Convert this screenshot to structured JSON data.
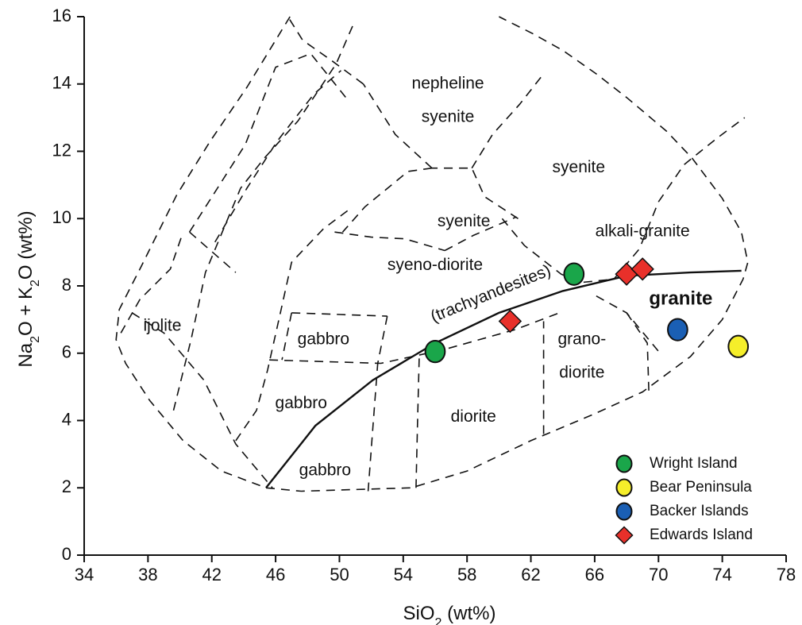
{
  "chart_data": {
    "type": "scatter",
    "title": "",
    "xlabel": {
      "main": "SiO",
      "sub": "2",
      "rest": " (wt%)"
    },
    "ylabel": {
      "p1": "Na",
      "s1": "2",
      "p2": "O + K",
      "s2": "2",
      "p3": "O (wt%)"
    },
    "xlim": [
      34,
      78
    ],
    "ylim": [
      0,
      16
    ],
    "xticks": [
      34,
      38,
      42,
      46,
      50,
      54,
      58,
      62,
      66,
      70,
      74,
      78
    ],
    "yticks": [
      0,
      2,
      4,
      6,
      8,
      10,
      12,
      14,
      16
    ],
    "grid": false,
    "legend_position": "bottom-right",
    "series": [
      {
        "name": "Wright Island",
        "marker": "circle",
        "color": "#1aa64a",
        "points": [
          {
            "x": 56.0,
            "y": 6.05
          },
          {
            "x": 64.7,
            "y": 8.35
          }
        ]
      },
      {
        "name": "Bear Peninsula",
        "marker": "circle",
        "color": "#f5ee2a",
        "points": [
          {
            "x": 75.0,
            "y": 6.2
          }
        ]
      },
      {
        "name": "Backer Islands",
        "marker": "circle",
        "color": "#1a5fb4",
        "points": [
          {
            "x": 71.2,
            "y": 6.7
          }
        ]
      },
      {
        "name": "Edwards Island",
        "marker": "diamond",
        "color": "#e8302a",
        "points": [
          {
            "x": 60.7,
            "y": 6.95
          },
          {
            "x": 68.0,
            "y": 8.35
          },
          {
            "x": 69.0,
            "y": 8.5
          }
        ]
      }
    ],
    "alkaline_subalkaline_boundary": [
      [
        45.4,
        2.0
      ],
      [
        48.5,
        3.85
      ],
      [
        52.1,
        5.2
      ],
      [
        56.0,
        6.3
      ],
      [
        60.0,
        7.2
      ],
      [
        64.0,
        7.85
      ],
      [
        68.0,
        8.3
      ],
      [
        72.0,
        8.4
      ],
      [
        75.2,
        8.45
      ]
    ],
    "field_boundaries": [
      [
        [
          51.8,
          1.9
        ],
        [
          52.1,
          3.8
        ],
        [
          52.4,
          5.7
        ]
      ],
      [
        [
          54.8,
          2.0
        ],
        [
          54.9,
          4.0
        ],
        [
          55.0,
          5.85
        ]
      ],
      [
        [
          62.8,
          3.6
        ],
        [
          62.8,
          5.0
        ],
        [
          62.8,
          6.95
        ]
      ],
      [
        [
          45.6,
          5.8
        ],
        [
          49.0,
          5.75
        ],
        [
          52.6,
          5.7
        ],
        [
          56.5,
          6.1
        ],
        [
          61.0,
          6.7
        ],
        [
          63.8,
          7.2
        ]
      ],
      [
        [
          47.0,
          7.2
        ],
        [
          50.0,
          7.15
        ],
        [
          53.0,
          7.1
        ]
      ],
      [
        [
          47.0,
          7.2
        ],
        [
          46.4,
          5.8
        ]
      ],
      [
        [
          53.0,
          7.1
        ],
        [
          52.4,
          5.7
        ]
      ],
      [
        [
          43.5,
          3.4
        ],
        [
          44.8,
          4.3
        ],
        [
          45.5,
          5.5
        ],
        [
          46.3,
          7.2
        ],
        [
          47.0,
          8.7
        ],
        [
          49.0,
          9.7
        ],
        [
          50.7,
          10.3
        ]
      ],
      [
        [
          49.7,
          9.6
        ],
        [
          52.0,
          9.45
        ],
        [
          54.1,
          9.4
        ],
        [
          56.6,
          9.05
        ]
      ],
      [
        [
          56.6,
          9.05
        ],
        [
          58.4,
          9.5
        ],
        [
          61.1,
          10.05
        ]
      ],
      [
        [
          61.2,
          10.0
        ],
        [
          59.1,
          10.65
        ],
        [
          58.3,
          11.5
        ],
        [
          55.8,
          11.5
        ]
      ],
      [
        [
          55.8,
          11.5
        ],
        [
          54.3,
          11.4
        ],
        [
          51.6,
          10.35
        ],
        [
          50.2,
          9.6
        ]
      ],
      [
        [
          58.3,
          11.5
        ],
        [
          59.6,
          12.5
        ],
        [
          61.3,
          13.4
        ],
        [
          62.8,
          14.3
        ]
      ],
      [
        [
          55.8,
          11.5
        ],
        [
          53.5,
          12.5
        ],
        [
          52.3,
          13.4
        ],
        [
          51.5,
          14.0
        ]
      ],
      [
        [
          51.5,
          14.0
        ],
        [
          49.5,
          14.7
        ],
        [
          47.7,
          15.3
        ],
        [
          46.9,
          15.9
        ],
        [
          46.8,
          16.0
        ]
      ],
      [
        [
          42.2,
          9.3
        ],
        [
          44.2,
          10.9
        ],
        [
          46.1,
          12.3
        ],
        [
          48.4,
          13.7
        ],
        [
          50.1,
          14.4
        ]
      ],
      [
        [
          40.6,
          9.6
        ],
        [
          44.1,
          12.2
        ],
        [
          46.0,
          14.5
        ],
        [
          48.2,
          14.9
        ],
        [
          50.4,
          13.6
        ]
      ],
      [
        [
          40.6,
          9.6
        ],
        [
          43.5,
          8.4
        ]
      ],
      [
        [
          37.0,
          7.2
        ],
        [
          39.0,
          6.6
        ],
        [
          41.5,
          5.2
        ],
        [
          43.5,
          3.3
        ],
        [
          45.8,
          2.0
        ]
      ],
      [
        [
          39.6,
          4.3
        ],
        [
          40.7,
          6.4
        ],
        [
          41.6,
          8.4
        ],
        [
          43.8,
          10.9
        ],
        [
          45.3,
          11.8
        ],
        [
          47.4,
          12.9
        ],
        [
          49.8,
          14.6
        ],
        [
          50.9,
          15.8
        ]
      ],
      [
        [
          36.3,
          6.6
        ],
        [
          37.5,
          7.6
        ],
        [
          39.4,
          8.5
        ],
        [
          40.2,
          9.6
        ]
      ],
      [
        [
          60.2,
          10.0
        ],
        [
          61.6,
          9.2
        ],
        [
          63.9,
          8.35
        ],
        [
          65.1,
          8.1
        ],
        [
          67.2,
          8.2
        ],
        [
          68.8,
          9.1
        ],
        [
          70.0,
          10.5
        ]
      ],
      [
        [
          66.1,
          7.7
        ],
        [
          68.0,
          7.2
        ],
        [
          70.1,
          6.0
        ]
      ],
      [
        [
          68.0,
          7.2
        ],
        [
          69.3,
          6.3
        ],
        [
          69.4,
          4.8
        ]
      ],
      [
        [
          70.0,
          10.5
        ],
        [
          71.6,
          11.6
        ],
        [
          73.7,
          12.4
        ],
        [
          75.4,
          13.0
        ]
      ]
    ],
    "outer_envelope": [
      [
        45.4,
        2.0
      ],
      [
        47.6,
        1.9
      ],
      [
        51.0,
        1.95
      ],
      [
        54.5,
        2.0
      ],
      [
        58.0,
        2.5
      ],
      [
        62.0,
        3.4
      ],
      [
        66.0,
        4.2
      ],
      [
        69.0,
        4.85
      ],
      [
        72.0,
        5.9
      ],
      [
        74.0,
        7.0
      ],
      [
        75.3,
        8.2
      ],
      [
        75.6,
        8.7
      ],
      [
        75.2,
        9.6
      ],
      [
        74.0,
        10.6
      ],
      [
        72.1,
        11.8
      ],
      [
        70.5,
        12.6
      ],
      [
        68.0,
        13.6
      ],
      [
        66.1,
        14.3
      ],
      [
        64.0,
        15.0
      ],
      [
        62.1,
        15.5
      ],
      [
        60.0,
        16.0
      ]
    ],
    "outer_left": [
      [
        46.9,
        16.0
      ],
      [
        44.2,
        13.9
      ],
      [
        41.9,
        12.3
      ],
      [
        39.8,
        10.7
      ],
      [
        37.6,
        8.6
      ],
      [
        36.2,
        7.3
      ],
      [
        36.0,
        6.4
      ],
      [
        36.6,
        5.7
      ],
      [
        38.1,
        4.6
      ],
      [
        40.2,
        3.4
      ],
      [
        42.6,
        2.5
      ],
      [
        45.4,
        2.0
      ]
    ],
    "field_labels": [
      {
        "text": "nepheline",
        "x": 56.8,
        "y": 14.0
      },
      {
        "text": "syenite",
        "x": 56.8,
        "y": 13.0
      },
      {
        "text": "syenite",
        "x": 65.0,
        "y": 11.5
      },
      {
        "text": "syenite",
        "x": 57.8,
        "y": 9.9
      },
      {
        "text": "alkali-granite",
        "x": 69.0,
        "y": 9.6
      },
      {
        "text": "syeno-diorite",
        "x": 56.0,
        "y": 8.6
      },
      {
        "text": "(trachyandesites)",
        "x": 59.5,
        "y": 7.75,
        "rotate": -22
      },
      {
        "text": "granite",
        "x": 71.4,
        "y": 7.6,
        "emphasis": "bold"
      },
      {
        "text": "ijolite",
        "x": 38.9,
        "y": 6.8
      },
      {
        "text": "gabbro",
        "x": 49.0,
        "y": 6.4
      },
      {
        "text": "grano-",
        "x": 65.2,
        "y": 6.4
      },
      {
        "text": "diorite",
        "x": 65.2,
        "y": 5.4
      },
      {
        "text": "gabbro",
        "x": 47.6,
        "y": 4.5
      },
      {
        "text": "diorite",
        "x": 58.4,
        "y": 4.1
      },
      {
        "text": "gabbro",
        "x": 49.1,
        "y": 2.5
      }
    ]
  }
}
